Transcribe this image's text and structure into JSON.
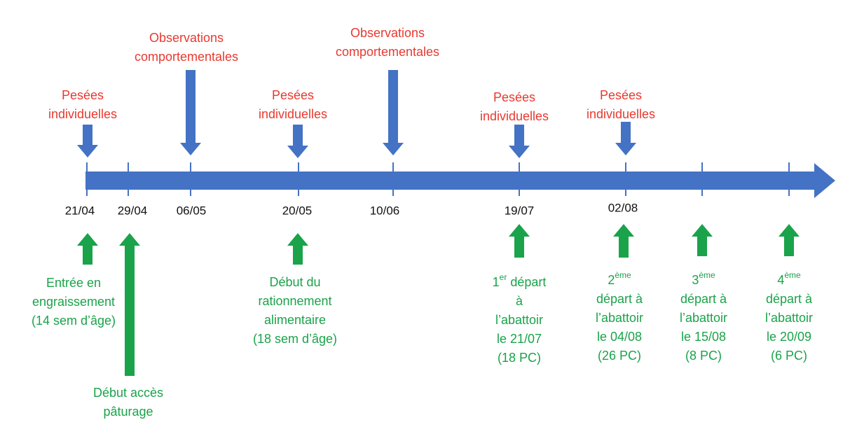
{
  "timeline": {
    "dates": [
      "21/04",
      "29/04",
      "06/05",
      "20/05",
      "10/06",
      "19/07",
      "02/08"
    ]
  },
  "top_events": [
    {
      "lines": [
        "Pesées",
        "individuelles"
      ]
    },
    {
      "lines": [
        "Observations",
        "comportementales"
      ]
    },
    {
      "lines": [
        "Pesées",
        "individuelles"
      ]
    },
    {
      "lines": [
        "Observations",
        "comportementales"
      ]
    },
    {
      "lines": [
        "Pesées",
        "individuelles"
      ]
    },
    {
      "lines": [
        "Pesées",
        "individuelles"
      ]
    }
  ],
  "bottom_events": [
    {
      "lines": [
        [
          "Entrée en"
        ],
        [
          "engraissement"
        ],
        [
          "(14 sem d’âge)"
        ]
      ]
    },
    {
      "lines": [
        [
          "Début accès"
        ],
        [
          "pâturage"
        ]
      ]
    },
    {
      "lines": [
        [
          "Début du"
        ],
        [
          "rationnement"
        ],
        [
          "alimentaire"
        ],
        [
          "(18 sem d’âge)"
        ]
      ]
    },
    {
      "lines": [
        [
          "1",
          {
            "sup": "er"
          },
          " départ"
        ],
        [
          "à"
        ],
        [
          "l’abattoir"
        ],
        [
          "le 21/07"
        ],
        [
          "(18 PC)"
        ]
      ]
    },
    {
      "lines": [
        [
          "2",
          {
            "sup": "ème"
          }
        ],
        [
          "départ à"
        ],
        [
          "l’abattoir"
        ],
        [
          "le 04/08"
        ],
        [
          "(26 PC)"
        ]
      ]
    },
    {
      "lines": [
        [
          "3",
          {
            "sup": "ème"
          }
        ],
        [
          "départ à"
        ],
        [
          "l’abattoir"
        ],
        [
          "le 15/08"
        ],
        [
          "(8 PC)"
        ]
      ]
    },
    {
      "lines": [
        [
          "4",
          {
            "sup": "ème"
          }
        ],
        [
          "départ à"
        ],
        [
          "l’abattoir"
        ],
        [
          "le 20/09"
        ],
        [
          "(6 PC)"
        ]
      ]
    }
  ]
}
